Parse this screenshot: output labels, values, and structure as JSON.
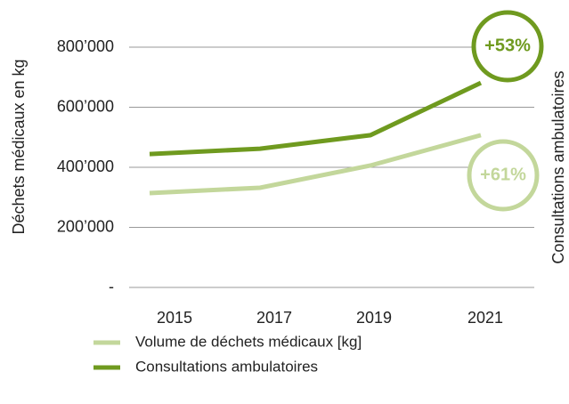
{
  "chart_data": {
    "type": "line",
    "y_label": "Déchets médicaux en kg",
    "y2_label": "Consultations ambulatoires",
    "categories": [
      "2015",
      "2017",
      "2019",
      "2021"
    ],
    "series": [
      {
        "name": "Volume de déchets médicaux [kg]",
        "color": "#c3d79b",
        "values": [
          314000,
          332000,
          406000,
          507000
        ]
      },
      {
        "name": "Consultations ambulatoires",
        "color": "#6f9a1f",
        "values": [
          444000,
          462000,
          507000,
          681000
        ]
      }
    ],
    "ylim": [
      0,
      880000
    ],
    "yticks": [
      {
        "value": 0,
        "label": "-"
      },
      {
        "value": 200000,
        "label": "200’000"
      },
      {
        "value": 400000,
        "label": "400’000"
      },
      {
        "value": 600000,
        "label": "600’000"
      },
      {
        "value": 800000,
        "label": "800’000"
      }
    ],
    "grid": true,
    "annotations": [
      {
        "text": "+53%",
        "color": "#6f9a1f"
      },
      {
        "text": "+61%",
        "color": "#c3d79b"
      }
    ]
  }
}
